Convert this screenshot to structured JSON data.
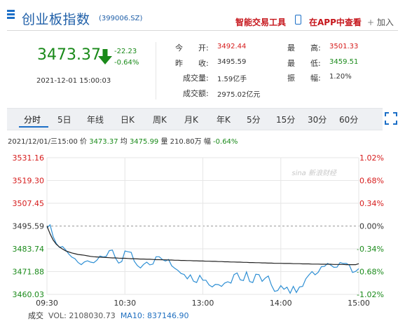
{
  "header": {
    "title": "创业板指数",
    "code": "(399006.SZ)",
    "smart_tool": "智能交易工具",
    "app_view": "在APP中查看",
    "add": "加入"
  },
  "quote": {
    "price": "3473.37",
    "change": "-22.23",
    "change_pct": "-0.64%",
    "datetime": "2021-12-01 15:00:03"
  },
  "stats": {
    "open_label": "今　　开:",
    "open": "3492.44",
    "prev_close_label": "昨　　收:",
    "prev_close": "3495.59",
    "volume_label": "成交量:",
    "volume": "1.59亿手",
    "amount_label": "成交额:",
    "amount": "2975.02亿元",
    "high_label": "最　　高:",
    "high": "3501.33",
    "low_label": "最　　低:",
    "low": "3459.51",
    "amplitude_label": "振　　幅:",
    "amplitude": "1.20%"
  },
  "tabs": [
    "分时",
    "5日",
    "年线",
    "日K",
    "周K",
    "月K",
    "年K",
    "5分",
    "15分",
    "30分",
    "60分"
  ],
  "info_bar": {
    "time": "2021/12/01/三15:00",
    "price_label": "价",
    "price": "3473.37",
    "avg_label": "均",
    "avg": "3475.99",
    "vol_label": "量",
    "vol": "210.80万",
    "pct_label": "幅",
    "pct": "-0.64%"
  },
  "watermark": "sina 新浪财经",
  "volume_bar": {
    "label": "成交",
    "vol": "VOL: 2108030.73",
    "ma10": "MA10: 837146.90"
  },
  "colors": {
    "up": "#d61b1b",
    "down": "#1a8a1a",
    "price_line": "#2e8fd4",
    "avg_line": "#222222",
    "accent": "#1c6fc7"
  },
  "chart_data": {
    "type": "line",
    "y_ticks_left": [
      "3531.16",
      "3519.30",
      "3507.45",
      "3495.59",
      "3483.74",
      "3471.88",
      "3460.03"
    ],
    "y_ticks_right": [
      "1.02%",
      "0.68%",
      "0.34%",
      "0.00%",
      "-0.34%",
      "-0.68%",
      "-1.02%"
    ],
    "x_ticks": [
      "09:30",
      "10:30",
      "13:00",
      "14:00",
      "15:00"
    ],
    "ylim": [
      3460.03,
      3531.16
    ],
    "prev_close": 3495.59,
    "series": [
      {
        "name": "价",
        "values": [
          3494.6,
          3496.2,
          3490.0,
          3486.5,
          3484.5,
          3484.9,
          3483.2,
          3481.0,
          3479.4,
          3478.6,
          3476.6,
          3475.5,
          3476.9,
          3477.5,
          3476.8,
          3476.5,
          3477.8,
          3480.0,
          3479.5,
          3479.8,
          3482.8,
          3483.1,
          3478.9,
          3476.3,
          3477.1,
          3482.6,
          3482.2,
          3481.9,
          3477.3,
          3475.0,
          3473.8,
          3475.6,
          3476.8,
          3475.4,
          3475.8,
          3479.6,
          3479.6,
          3478.2,
          3477.4,
          3478.2,
          3474.9,
          3473.6,
          3472.5,
          3470.9,
          3470.4,
          3468.1,
          3470.2,
          3466.9,
          3466.2,
          3469.9,
          3467.4,
          3467.4,
          3464.9,
          3463.9,
          3465.2,
          3465.1,
          3464.2,
          3465.9,
          3466.6,
          3465.9,
          3470.3,
          3471.2,
          3467.6,
          3467.2,
          3471.7,
          3466.7,
          3466.2,
          3470.5,
          3470.3,
          3466.8,
          3468.5,
          3469.6,
          3464.8,
          3461.6,
          3462.0,
          3464.6,
          3462.7,
          3463.8,
          3460.6,
          3464.2,
          3461.0,
          3463.9,
          3464.2,
          3468.1,
          3470.1,
          3471.9,
          3470.2,
          3471.5,
          3474.4,
          3474.6,
          3476.1,
          3475.3,
          3474.1,
          3474.2,
          3476.6,
          3476.1,
          3476.2,
          3475.2,
          3471.4,
          3472.0,
          3473.4
        ]
      },
      {
        "name": "均",
        "values": [
          3495.6,
          3491.5,
          3488.3,
          3486.1,
          3484.7,
          3483.6,
          3482.7,
          3482.1,
          3481.6,
          3481.2,
          3480.8,
          3480.6,
          3480.4,
          3480.1,
          3479.8,
          3479.6,
          3479.5,
          3479.4,
          3479.3,
          3479.2,
          3479.1,
          3479.0,
          3479.0,
          3478.9,
          3478.8,
          3478.8,
          3478.7,
          3478.6,
          3478.6,
          3478.5,
          3478.4,
          3478.4,
          3478.3,
          3478.3,
          3478.2,
          3478.1,
          3478.1,
          3478.0,
          3478.0,
          3477.9,
          3477.9,
          3477.8,
          3477.8,
          3477.7,
          3477.7,
          3477.6,
          3477.6,
          3477.5,
          3477.5,
          3477.4,
          3477.4,
          3477.3,
          3477.3,
          3477.2,
          3477.2,
          3477.1,
          3477.1,
          3477.0,
          3477.0,
          3476.9,
          3476.9,
          3476.8,
          3476.8,
          3476.7,
          3476.7,
          3476.6,
          3476.6,
          3476.5,
          3476.5,
          3476.4,
          3476.4,
          3476.3,
          3476.3,
          3476.2,
          3476.2,
          3476.2,
          3476.1,
          3476.1,
          3476.1,
          3476.0,
          3476.0,
          3476.0,
          3475.9,
          3475.9,
          3475.9,
          3475.8,
          3475.8,
          3475.8,
          3475.7,
          3475.7,
          3475.7,
          3475.7,
          3475.6,
          3475.6,
          3475.6,
          3475.6,
          3475.5,
          3475.5,
          3475.5,
          3475.5,
          3475.99
        ]
      }
    ]
  }
}
